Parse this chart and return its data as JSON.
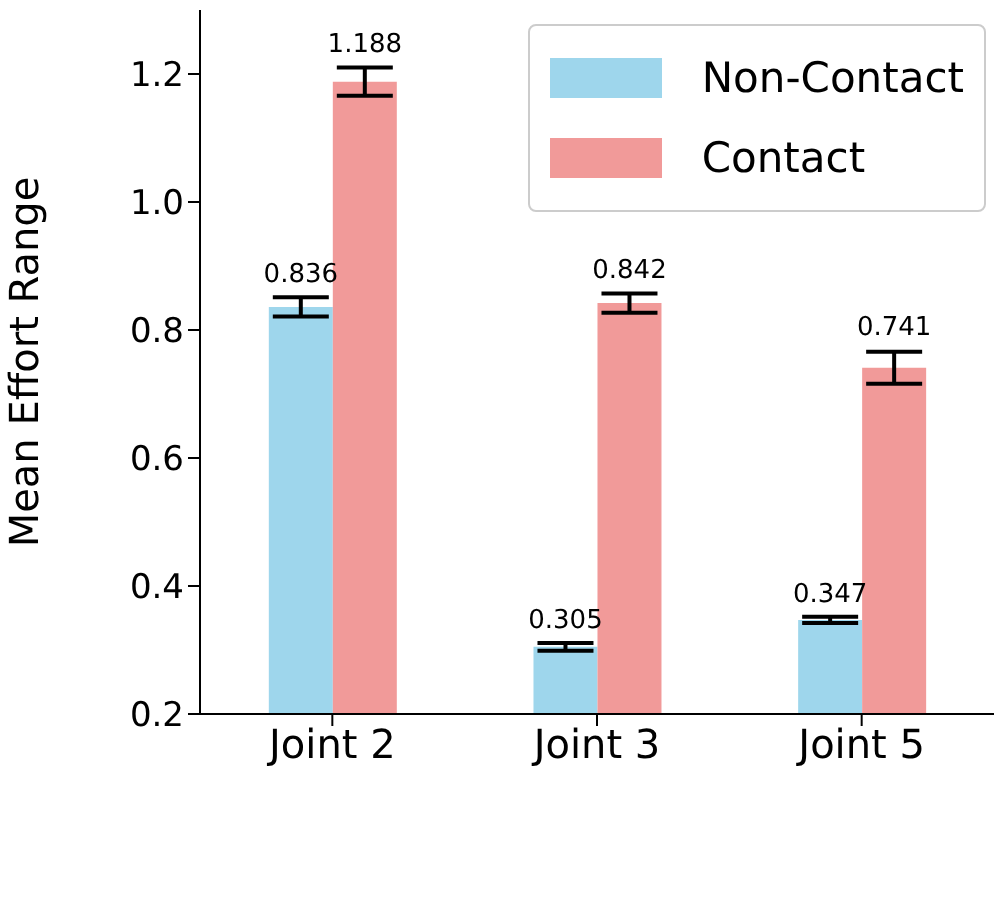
{
  "chart_data": {
    "type": "bar",
    "ylabel": "Mean Effort Range",
    "categories": [
      "Joint 2",
      "Joint 3",
      "Joint 5"
    ],
    "series": [
      {
        "name": "Non-Contact",
        "color": "#9ed6ec",
        "values": [
          0.836,
          0.305,
          0.347
        ],
        "errors": [
          0.015,
          0.006,
          0.005
        ]
      },
      {
        "name": "Contact",
        "color": "#f19a99",
        "values": [
          1.188,
          0.842,
          0.741
        ],
        "errors": [
          0.022,
          0.015,
          0.025
        ]
      }
    ],
    "ylim": [
      0.2,
      1.3
    ],
    "yticks": [
      0.2,
      0.4,
      0.6,
      0.8,
      {
        "value": 1,
        "label": "1.0"
      },
      1.2
    ],
    "data_labels": true,
    "legend": "top right",
    "grid": false
  }
}
